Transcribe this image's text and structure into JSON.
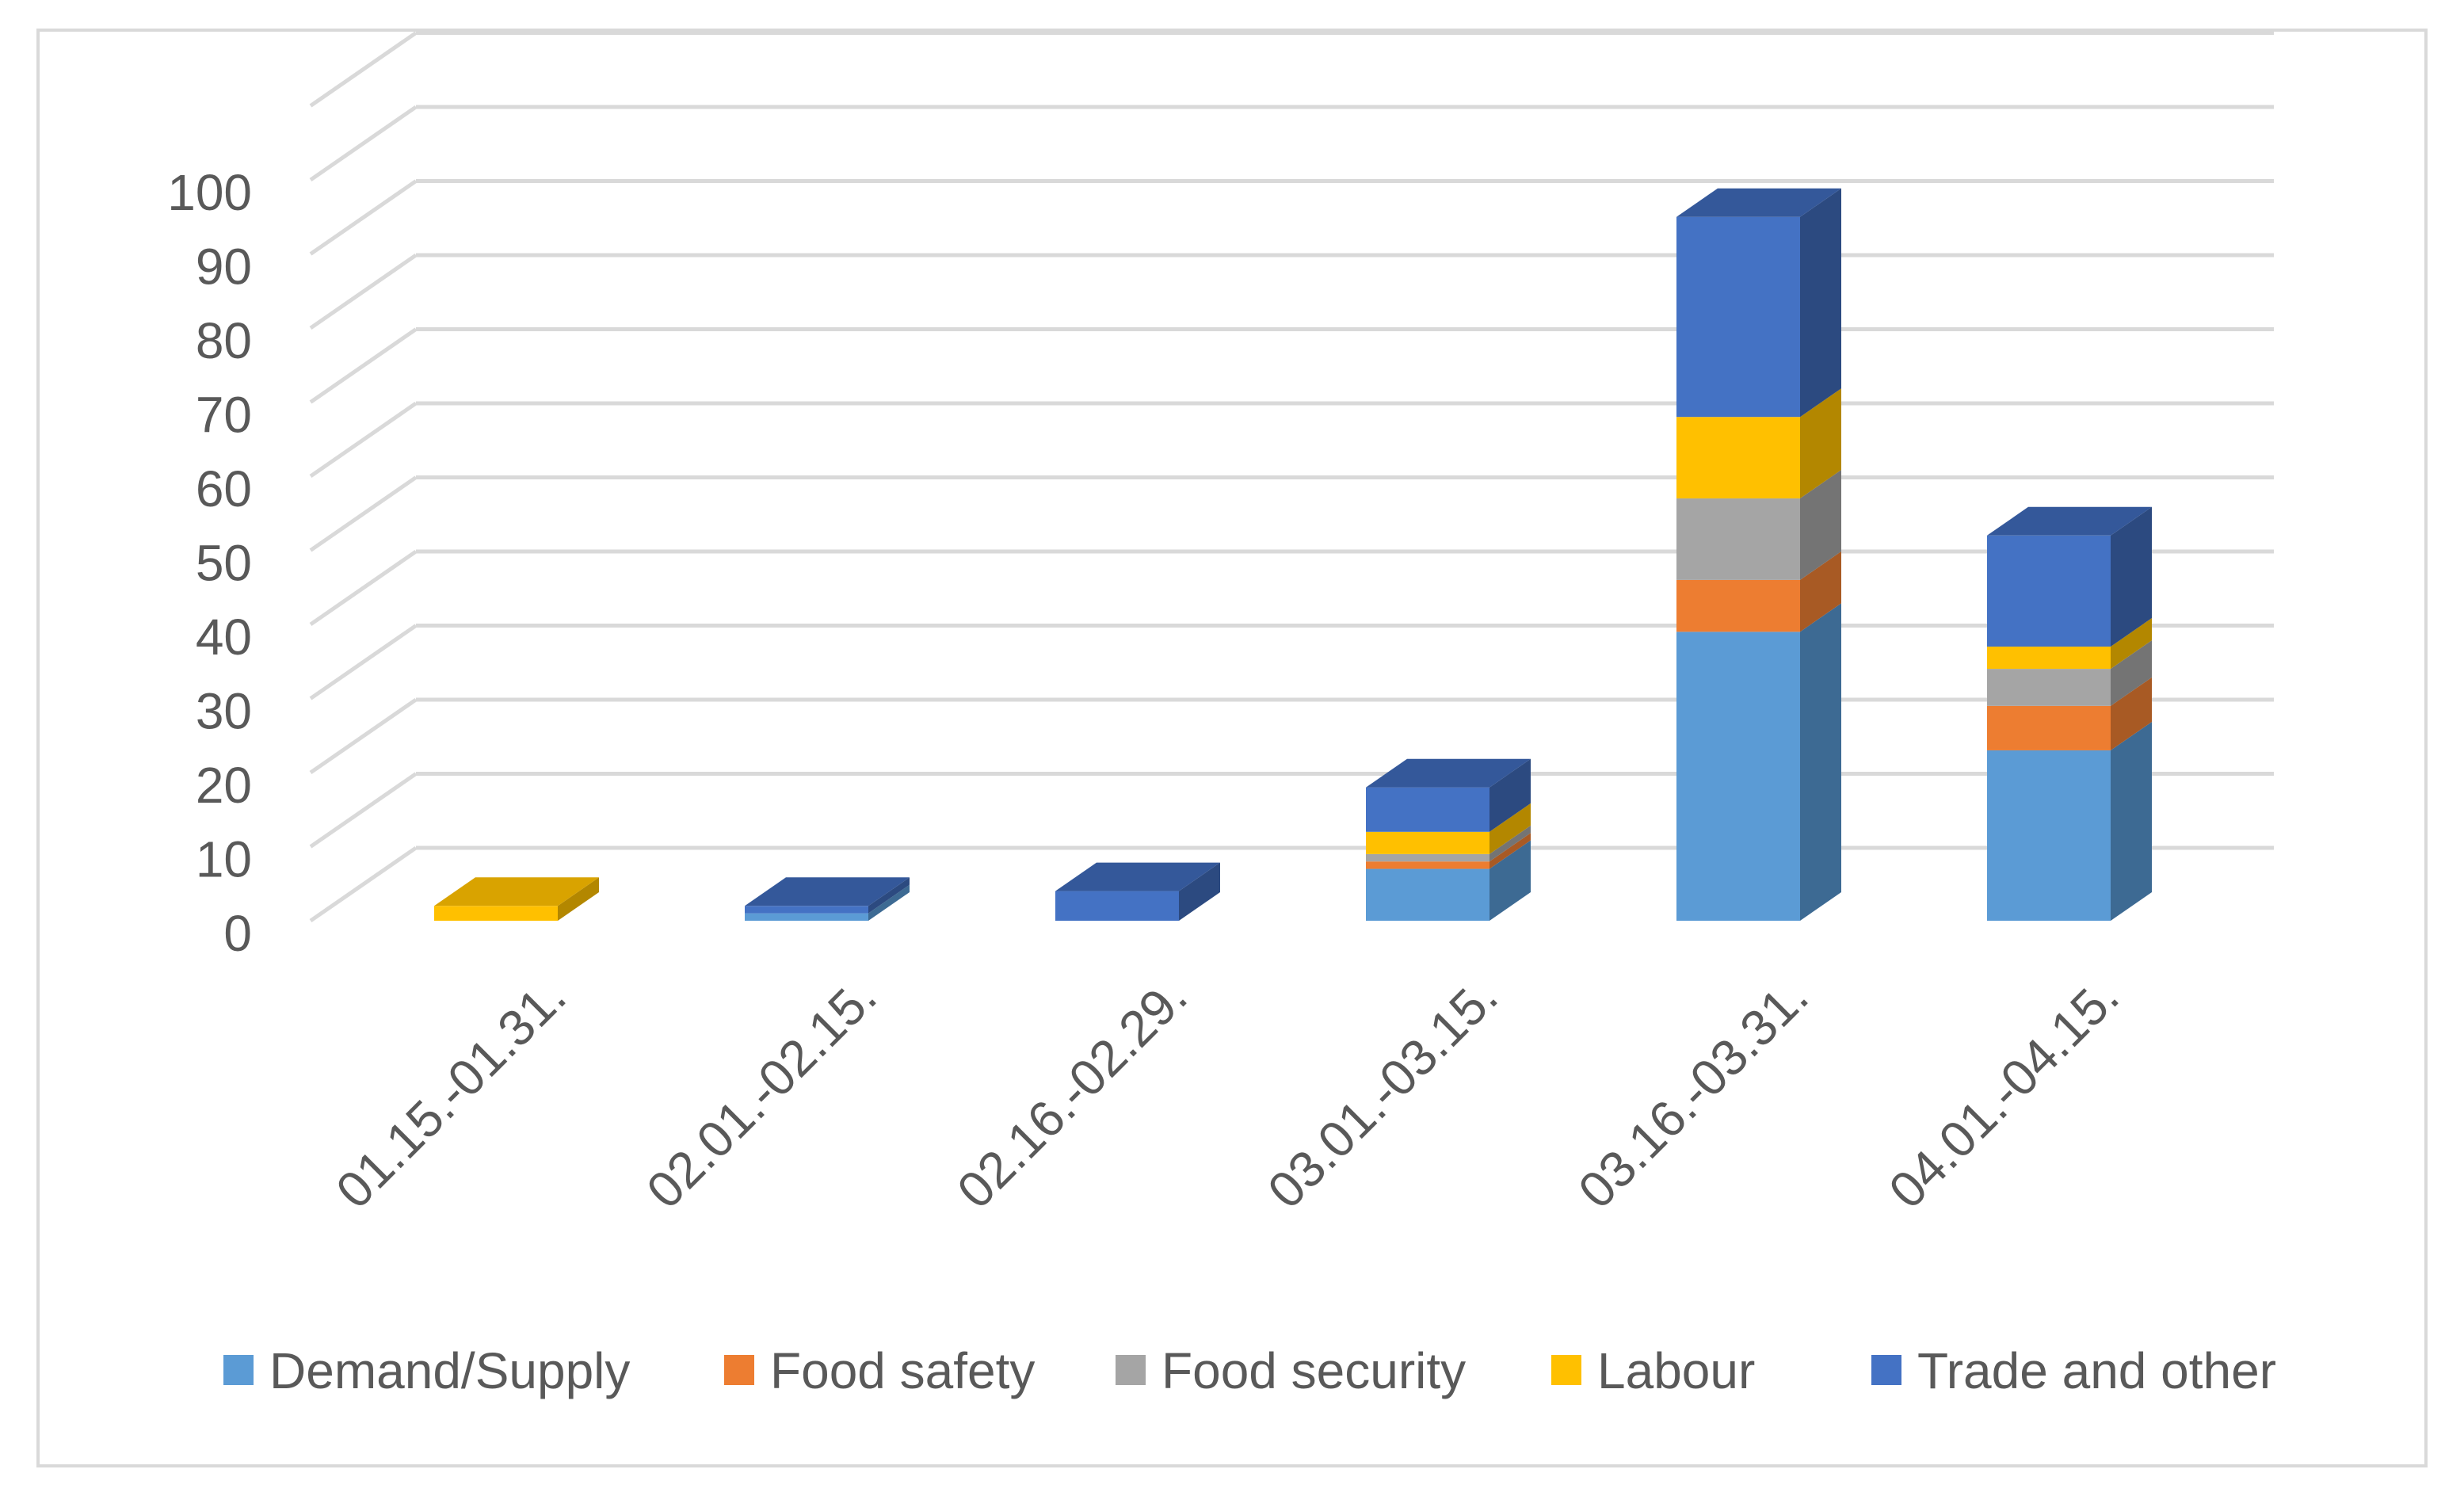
{
  "chart_data": {
    "type": "bar",
    "stacked": true,
    "style": "3d-column",
    "title": "",
    "xlabel": "",
    "ylabel": "",
    "ylim": [
      0,
      110
    ],
    "y_ticks": [
      0,
      10,
      20,
      30,
      40,
      50,
      60,
      70,
      80,
      90,
      100
    ],
    "grid": true,
    "legend_position": "bottom",
    "categories": [
      "01.15.-01.31.",
      "02.01.-02.15.",
      "02.16.-02.29.",
      "03.01.-03.15.",
      "03.16.-03.31.",
      "04.01.-04.15."
    ],
    "series": [
      {
        "name": "Demand/Supply",
        "color": "#5b9bd5",
        "top_color": "#4a7fb0",
        "side_color": "#3d6a93",
        "values": [
          0,
          1,
          0,
          7,
          39,
          23
        ]
      },
      {
        "name": "Food safety",
        "color": "#ed7d31",
        "top_color": "#c4661f",
        "side_color": "#a85a24",
        "values": [
          0,
          0,
          0,
          1,
          7,
          6
        ]
      },
      {
        "name": "Food security",
        "color": "#a5a5a5",
        "top_color": "#8a8a8a",
        "side_color": "#747474",
        "values": [
          0,
          0,
          0,
          1,
          11,
          5
        ]
      },
      {
        "name": "Labour",
        "color": "#ffc000",
        "top_color": "#d9a300",
        "side_color": "#b38700",
        "values": [
          2,
          0,
          0,
          3,
          11,
          3
        ]
      },
      {
        "name": "Trade and other",
        "color": "#4472c4",
        "top_color": "#34589a",
        "side_color": "#2c4a80",
        "values": [
          0,
          1,
          4,
          6,
          27,
          15
        ]
      }
    ]
  }
}
